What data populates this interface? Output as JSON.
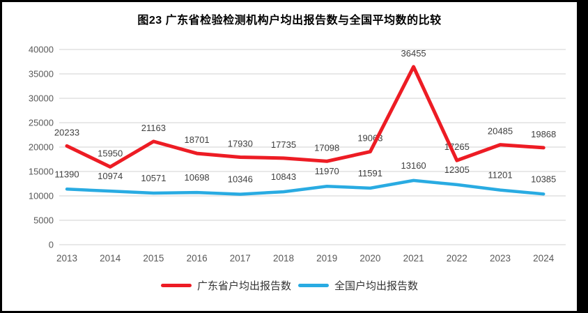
{
  "title": "图23  广东省检验检测机构户均出报告数与全国平均数的比较",
  "chart_data": {
    "type": "line",
    "title": "图23  广东省检验检测机构户均出报告数与全国平均数的比较",
    "categories": [
      "2013",
      "2014",
      "2015",
      "2016",
      "2017",
      "2018",
      "2019",
      "2020",
      "2021",
      "2022",
      "2023",
      "2024"
    ],
    "series": [
      {
        "name": "广东省户均出报告数",
        "color": "#ED1C24",
        "values": [
          20233,
          15950,
          21163,
          18701,
          17930,
          17735,
          17098,
          19063,
          36455,
          17265,
          20485,
          19868
        ]
      },
      {
        "name": "全国户均出报告数",
        "color": "#29ABE2",
        "values": [
          11390,
          10974,
          10571,
          10698,
          10346,
          10843,
          11970,
          11591,
          13160,
          12305,
          11201,
          10385
        ]
      }
    ],
    "ylim": [
      0,
      40000
    ],
    "yticks": [
      0,
      5000,
      10000,
      15000,
      20000,
      25000,
      30000,
      35000,
      40000
    ],
    "grid": true,
    "data_labels": true,
    "legend_position": "bottom"
  },
  "styles": {
    "gridline_color": "#D9D9D9",
    "tick_label_color": "#595959",
    "data_label_color": "#404040",
    "background": "#FFFFFF",
    "frame_color": "#000000"
  }
}
